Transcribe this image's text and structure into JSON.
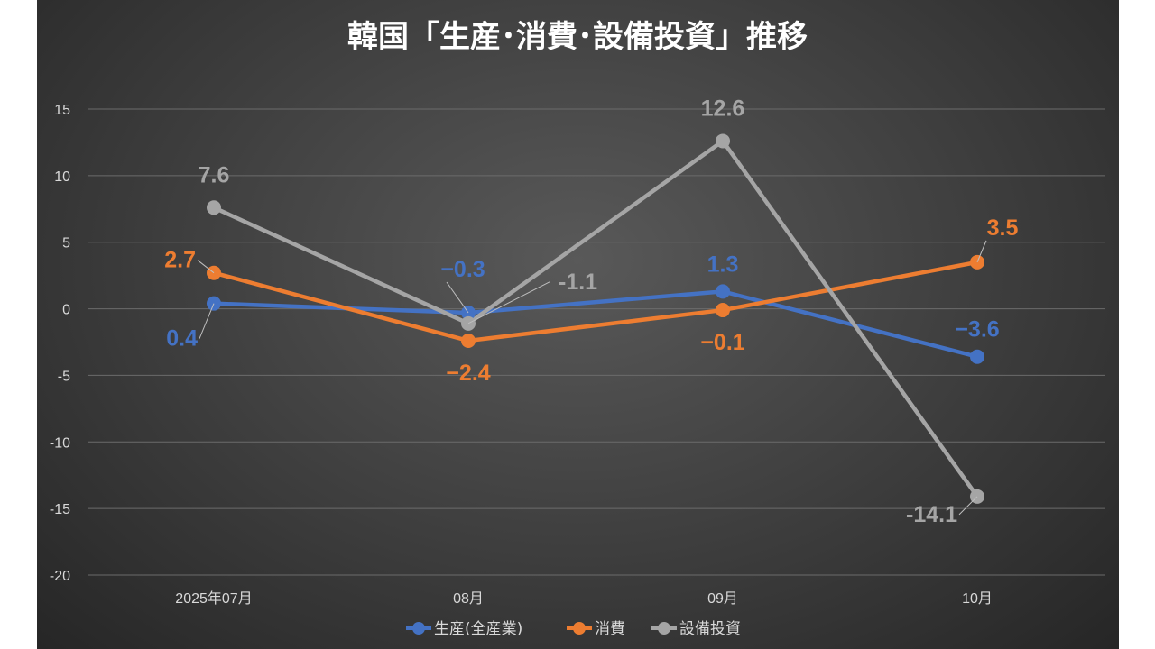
{
  "chart_data": {
    "type": "line",
    "title": "韓国「生産･消費･設備投資」推移",
    "categories": [
      "2025年07月",
      "08月",
      "09月",
      "10月"
    ],
    "ylim": [
      -20,
      15
    ],
    "yticks": [
      15,
      10,
      5,
      0,
      -5,
      -10,
      -15,
      -20
    ],
    "ytick_labels": [
      "15",
      "10",
      "5",
      "0",
      "-5",
      "-10",
      "-15",
      "-20"
    ],
    "grid": true,
    "legend_position": "bottom",
    "series": [
      {
        "name": "生産(全産業)",
        "color": "#4472c4",
        "values": [
          0.4,
          -0.3,
          1.3,
          -3.6
        ],
        "labels": [
          "0.4",
          "−0.3",
          "1.3",
          "−3.6"
        ]
      },
      {
        "name": "消費",
        "color": "#ed7d31",
        "values": [
          2.7,
          -2.4,
          -0.1,
          3.5
        ],
        "labels": [
          "2.7",
          "−2.4",
          "−0.1",
          "3.5"
        ]
      },
      {
        "name": "設備投資",
        "color": "#a5a5a5",
        "values": [
          7.6,
          -1.1,
          12.6,
          -14.1
        ],
        "labels": [
          "7.6",
          "-1.1",
          "12.6",
          "-14.1"
        ]
      }
    ]
  }
}
